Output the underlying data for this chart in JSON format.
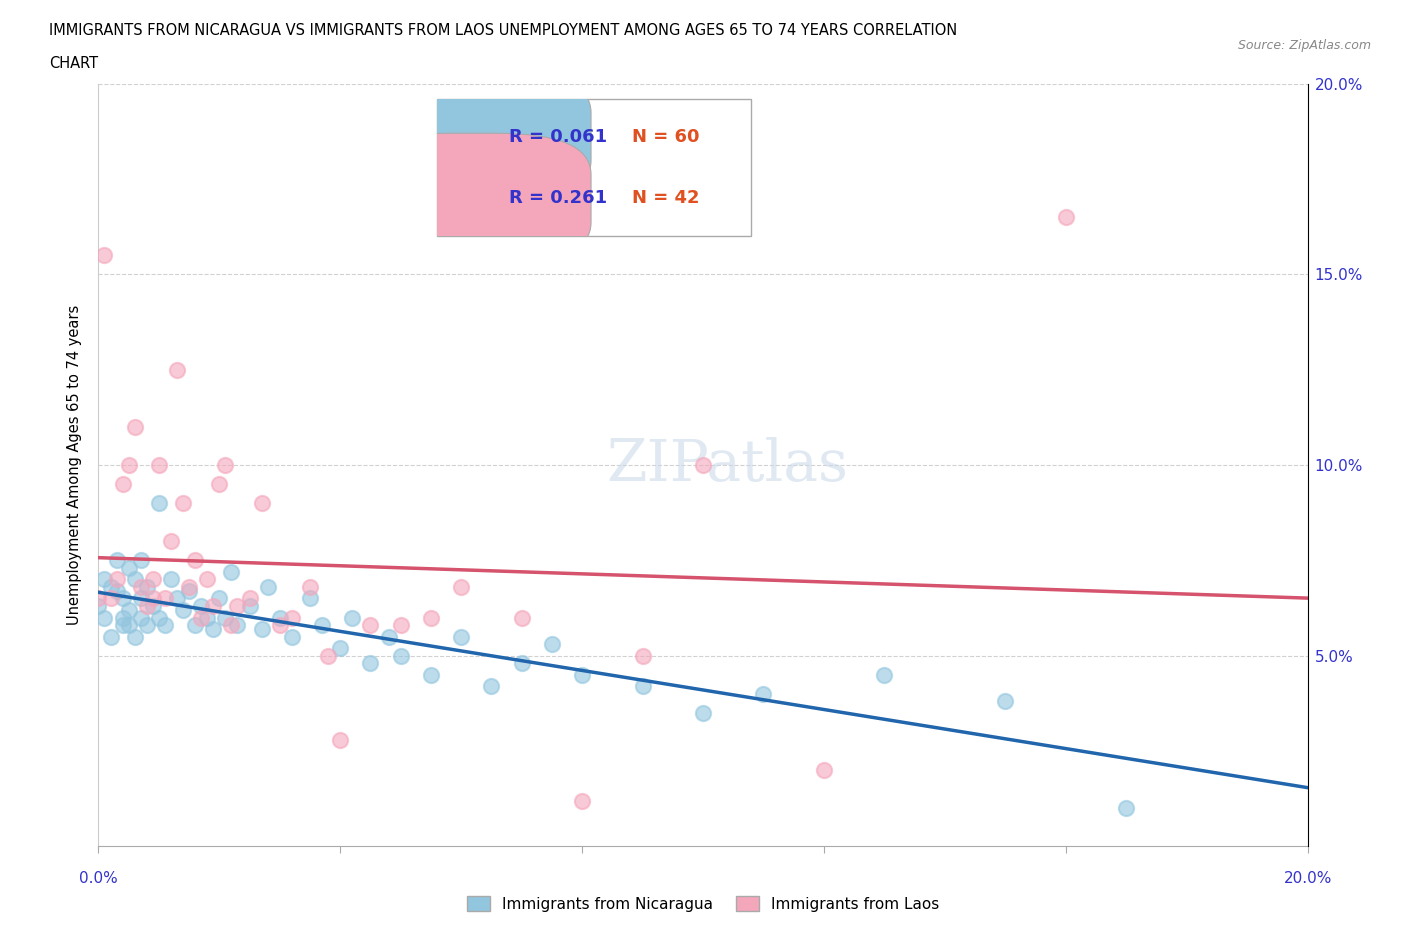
{
  "title_line1": "IMMIGRANTS FROM NICARAGUA VS IMMIGRANTS FROM LAOS UNEMPLOYMENT AMONG AGES 65 TO 74 YEARS CORRELATION",
  "title_line2": "CHART",
  "source": "Source: ZipAtlas.com",
  "ylabel": "Unemployment Among Ages 65 to 74 years",
  "xlim": [
    0.0,
    0.2
  ],
  "ylim": [
    0.0,
    0.2
  ],
  "ytick_labels": [
    "5.0%",
    "10.0%",
    "15.0%",
    "20.0%"
  ],
  "ytick_vals": [
    0.05,
    0.1,
    0.15,
    0.2
  ],
  "color_nicaragua": "#92c5de",
  "color_laos": "#f4a6bb",
  "color_line_nicaragua": "#2166ac",
  "color_line_laos": "#d6536d",
  "R_nicaragua": 0.061,
  "N_nicaragua": 60,
  "R_laos": 0.261,
  "N_laos": 42,
  "legend_label_nicaragua": "Immigrants from Nicaragua",
  "legend_label_laos": "Immigrants from Laos",
  "watermark": "ZIPatlas",
  "legend_text_color": "#3333cc",
  "nicaragua_x": [
    0.0,
    0.001,
    0.001,
    0.002,
    0.002,
    0.003,
    0.003,
    0.004,
    0.004,
    0.004,
    0.005,
    0.005,
    0.005,
    0.006,
    0.006,
    0.007,
    0.007,
    0.007,
    0.008,
    0.008,
    0.009,
    0.01,
    0.01,
    0.011,
    0.012,
    0.013,
    0.014,
    0.015,
    0.016,
    0.017,
    0.018,
    0.019,
    0.02,
    0.021,
    0.022,
    0.023,
    0.025,
    0.027,
    0.028,
    0.03,
    0.032,
    0.035,
    0.037,
    0.04,
    0.042,
    0.045,
    0.048,
    0.05,
    0.055,
    0.06,
    0.065,
    0.07,
    0.075,
    0.08,
    0.09,
    0.1,
    0.11,
    0.13,
    0.15,
    0.17
  ],
  "nicaragua_y": [
    0.063,
    0.07,
    0.06,
    0.068,
    0.055,
    0.067,
    0.075,
    0.058,
    0.065,
    0.06,
    0.073,
    0.058,
    0.062,
    0.07,
    0.055,
    0.065,
    0.06,
    0.075,
    0.058,
    0.068,
    0.063,
    0.09,
    0.06,
    0.058,
    0.07,
    0.065,
    0.062,
    0.067,
    0.058,
    0.063,
    0.06,
    0.057,
    0.065,
    0.06,
    0.072,
    0.058,
    0.063,
    0.057,
    0.068,
    0.06,
    0.055,
    0.065,
    0.058,
    0.052,
    0.06,
    0.048,
    0.055,
    0.05,
    0.045,
    0.055,
    0.042,
    0.048,
    0.053,
    0.045,
    0.042,
    0.035,
    0.04,
    0.045,
    0.038,
    0.01
  ],
  "laos_x": [
    0.0,
    0.001,
    0.002,
    0.003,
    0.004,
    0.005,
    0.006,
    0.007,
    0.008,
    0.009,
    0.009,
    0.01,
    0.011,
    0.012,
    0.013,
    0.014,
    0.015,
    0.016,
    0.017,
    0.018,
    0.019,
    0.02,
    0.021,
    0.022,
    0.023,
    0.025,
    0.027,
    0.03,
    0.032,
    0.035,
    0.038,
    0.04,
    0.045,
    0.05,
    0.055,
    0.06,
    0.07,
    0.08,
    0.09,
    0.1,
    0.12,
    0.16
  ],
  "laos_y": [
    0.065,
    0.155,
    0.065,
    0.07,
    0.095,
    0.1,
    0.11,
    0.068,
    0.063,
    0.07,
    0.065,
    0.1,
    0.065,
    0.08,
    0.125,
    0.09,
    0.068,
    0.075,
    0.06,
    0.07,
    0.063,
    0.095,
    0.1,
    0.058,
    0.063,
    0.065,
    0.09,
    0.058,
    0.06,
    0.068,
    0.05,
    0.028,
    0.058,
    0.058,
    0.06,
    0.068,
    0.06,
    0.012,
    0.05,
    0.1,
    0.02,
    0.165
  ]
}
